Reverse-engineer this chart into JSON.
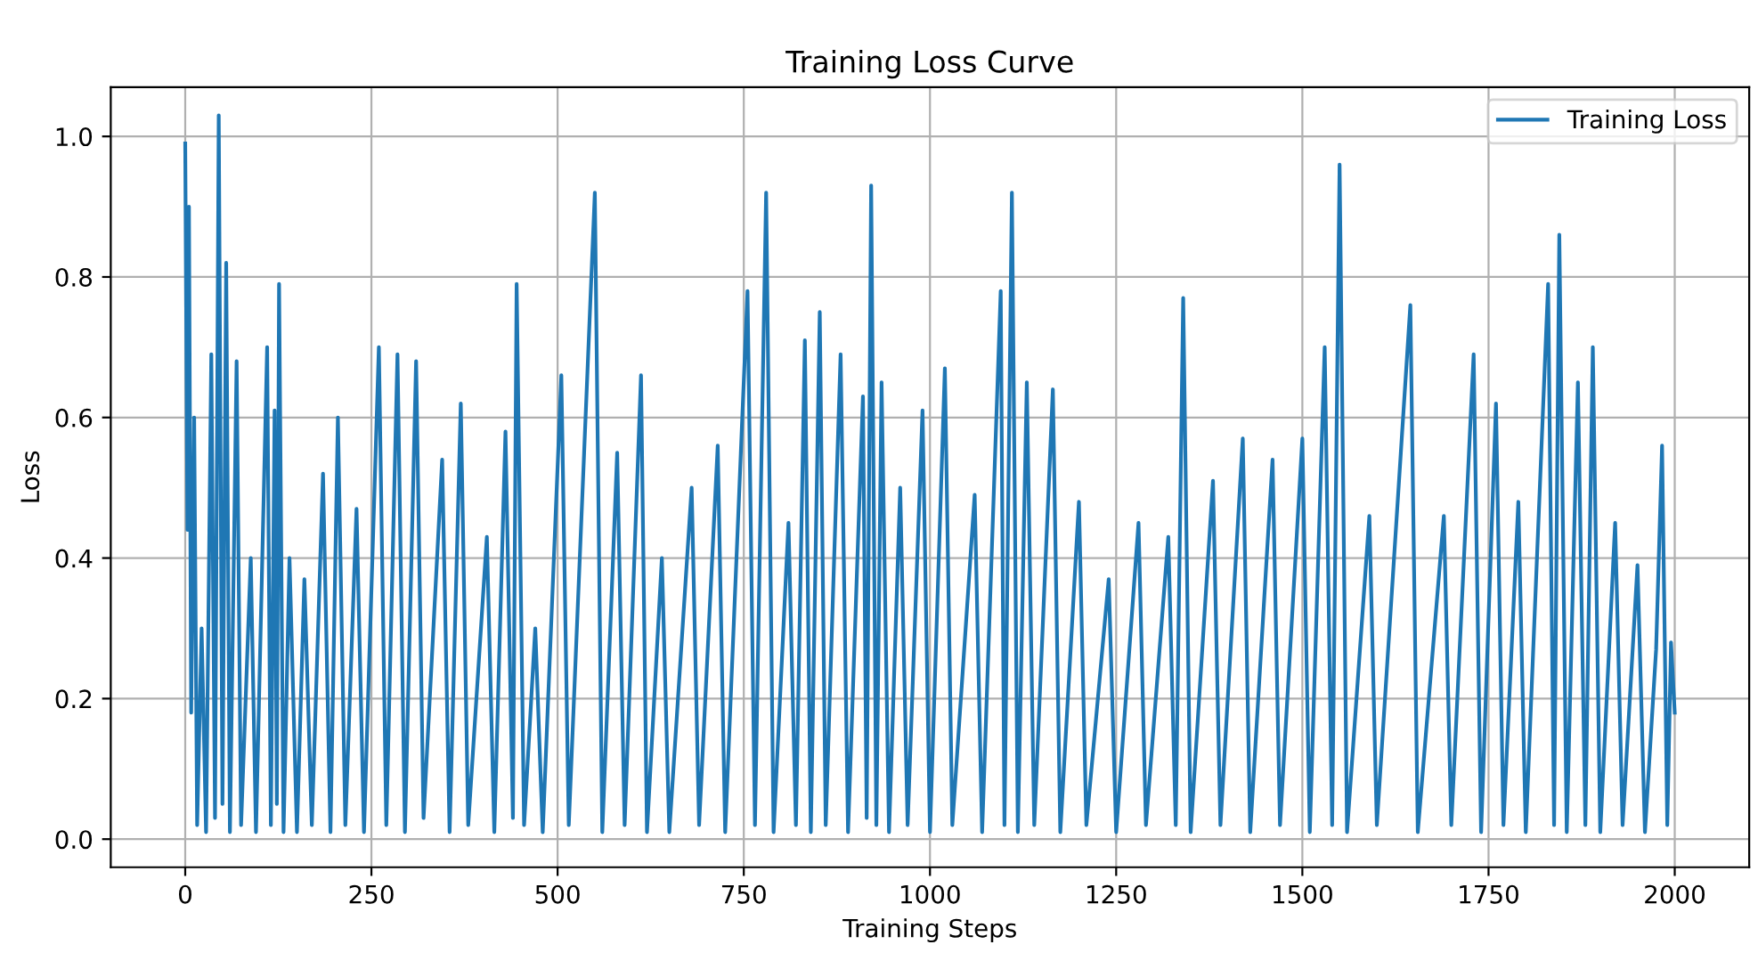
{
  "chart_data": {
    "type": "line",
    "title": "Training Loss Curve",
    "xlabel": "Training Steps",
    "ylabel": "Loss",
    "series": [
      {
        "name": "Training Loss",
        "color": "#1f77b4",
        "x": [
          0,
          3,
          5,
          8,
          12,
          16,
          22,
          28,
          35,
          40,
          45,
          50,
          55,
          60,
          69,
          75,
          88,
          95,
          110,
          115,
          120,
          123,
          126,
          132,
          140,
          150,
          160,
          170,
          185,
          195,
          205,
          215,
          230,
          240,
          260,
          270,
          285,
          295,
          310,
          320,
          345,
          355,
          370,
          380,
          405,
          415,
          430,
          440,
          445,
          455,
          470,
          480,
          505,
          515,
          550,
          560,
          580,
          590,
          612,
          620,
          640,
          650,
          680,
          690,
          715,
          725,
          755,
          765,
          780,
          790,
          810,
          820,
          832,
          840,
          852,
          860,
          880,
          890,
          910,
          915,
          921,
          928,
          935,
          945,
          960,
          970,
          990,
          1000,
          1020,
          1030,
          1060,
          1070,
          1095,
          1100,
          1110,
          1118,
          1130,
          1140,
          1165,
          1175,
          1200,
          1210,
          1240,
          1250,
          1280,
          1290,
          1320,
          1330,
          1340,
          1350,
          1380,
          1390,
          1420,
          1430,
          1460,
          1470,
          1500,
          1510,
          1530,
          1540,
          1550,
          1560,
          1590,
          1600,
          1645,
          1655,
          1690,
          1700,
          1730,
          1740,
          1760,
          1770,
          1790,
          1800,
          1830,
          1838,
          1845,
          1855,
          1870,
          1880,
          1890,
          1900,
          1920,
          1930,
          1950,
          1960,
          1975,
          1983,
          1990,
          1995,
          2000
        ],
        "values": [
          0.99,
          0.44,
          0.9,
          0.18,
          0.6,
          0.02,
          0.3,
          0.01,
          0.69,
          0.03,
          1.03,
          0.05,
          0.82,
          0.01,
          0.68,
          0.02,
          0.4,
          0.01,
          0.7,
          0.02,
          0.61,
          0.05,
          0.79,
          0.01,
          0.4,
          0.01,
          0.37,
          0.02,
          0.52,
          0.01,
          0.6,
          0.02,
          0.47,
          0.01,
          0.7,
          0.02,
          0.69,
          0.01,
          0.68,
          0.03,
          0.54,
          0.01,
          0.62,
          0.02,
          0.43,
          0.01,
          0.58,
          0.03,
          0.79,
          0.02,
          0.3,
          0.01,
          0.66,
          0.02,
          0.92,
          0.01,
          0.55,
          0.02,
          0.66,
          0.01,
          0.4,
          0.01,
          0.5,
          0.02,
          0.56,
          0.01,
          0.78,
          0.02,
          0.92,
          0.01,
          0.45,
          0.02,
          0.71,
          0.01,
          0.75,
          0.02,
          0.69,
          0.01,
          0.63,
          0.03,
          0.93,
          0.02,
          0.65,
          0.01,
          0.5,
          0.02,
          0.61,
          0.01,
          0.67,
          0.02,
          0.49,
          0.01,
          0.78,
          0.02,
          0.92,
          0.01,
          0.65,
          0.02,
          0.64,
          0.01,
          0.48,
          0.02,
          0.37,
          0.01,
          0.45,
          0.02,
          0.43,
          0.02,
          0.77,
          0.01,
          0.51,
          0.02,
          0.57,
          0.01,
          0.54,
          0.02,
          0.57,
          0.01,
          0.7,
          0.02,
          0.96,
          0.01,
          0.46,
          0.02,
          0.76,
          0.01,
          0.46,
          0.02,
          0.69,
          0.01,
          0.62,
          0.02,
          0.48,
          0.01,
          0.79,
          0.02,
          0.86,
          0.01,
          0.65,
          0.02,
          0.7,
          0.01,
          0.45,
          0.02,
          0.39,
          0.01,
          0.27,
          0.56,
          0.02,
          0.28,
          0.18
        ]
      }
    ],
    "xlim": [
      -100,
      2100
    ],
    "xticks": [
      0,
      250,
      500,
      750,
      1000,
      1250,
      1500,
      1750,
      2000
    ],
    "ylim": [
      -0.04,
      1.07
    ],
    "yticks": [
      {
        "value": 0,
        "label": "0.0"
      },
      0.2,
      0.4,
      0.6,
      0.8,
      {
        "value": 1,
        "label": "1.0"
      }
    ],
    "grid": true,
    "legend": "top right"
  }
}
